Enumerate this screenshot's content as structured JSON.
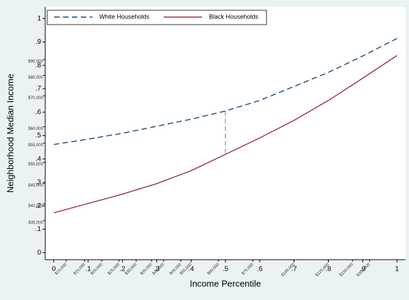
{
  "chart_data": {
    "type": "line",
    "x_label": "Income Percentile",
    "y_label": "Neighborhood Median Income",
    "x": [
      0,
      0.1,
      0.2,
      0.3,
      0.4,
      0.5,
      0.6,
      0.7,
      0.8,
      0.9,
      1
    ],
    "series": [
      {
        "name": "White Households",
        "color": "#1a476f",
        "dashed": true,
        "values": [
          0.462,
          0.485,
          0.51,
          0.54,
          0.57,
          0.605,
          0.65,
          0.71,
          0.77,
          0.84,
          0.915
        ]
      },
      {
        "name": "Black Households",
        "color": "#90353b",
        "dashed": false,
        "values": [
          0.17,
          0.21,
          0.25,
          0.295,
          0.35,
          0.42,
          0.49,
          0.565,
          0.65,
          0.745,
          0.842
        ]
      }
    ],
    "gap_at": 0.5,
    "xlim": [
      -0.025,
      1.025
    ],
    "ylim": [
      -0.03,
      1.05
    ],
    "xticks": [
      0,
      {
        "value": 0.1,
        "label": ".1"
      },
      {
        "value": 0.2,
        "label": ".2"
      },
      {
        "value": 0.3,
        "label": ".3"
      },
      {
        "value": 0.4,
        "label": ".4"
      },
      {
        "value": 0.5,
        "label": ".5"
      },
      {
        "value": 0.6,
        "label": ".6"
      },
      {
        "value": 0.7,
        "label": ".7"
      },
      {
        "value": 0.8,
        "label": ".8"
      },
      {
        "value": 0.9,
        "label": ".9"
      },
      1
    ],
    "yticks": [
      0,
      {
        "value": 0.1,
        "label": ".1"
      },
      {
        "value": 0.2,
        "label": ".2"
      },
      {
        "value": 0.3,
        "label": ".3"
      },
      {
        "value": 0.4,
        "label": ".4"
      },
      {
        "value": 0.5,
        "label": ".5"
      },
      {
        "value": 0.6,
        "label": ".6"
      },
      {
        "value": 0.7,
        "label": ".7"
      },
      {
        "value": 0.8,
        "label": ".8"
      },
      {
        "value": 0.9,
        "label": ".9"
      },
      1
    ],
    "dollar_xticks": [
      {
        "value": 0.036,
        "label": "$10,000"
      },
      {
        "value": 0.09,
        "label": "$15,000"
      },
      {
        "value": 0.14,
        "label": "$20,000"
      },
      {
        "value": 0.19,
        "label": "$25,000"
      },
      {
        "value": 0.24,
        "label": "$30,000"
      },
      {
        "value": 0.285,
        "label": "$35,000"
      },
      {
        "value": 0.32,
        "label": "$40,000"
      },
      {
        "value": 0.37,
        "label": "$45,000"
      },
      {
        "value": 0.4,
        "label": "$50,000"
      },
      {
        "value": 0.48,
        "label": "$60,000"
      },
      {
        "value": 0.58,
        "label": "$75,000"
      },
      {
        "value": 0.7,
        "label": "$100,000"
      },
      {
        "value": 0.8,
        "label": "$125,000"
      },
      {
        "value": 0.87,
        "label": "$150,000"
      },
      {
        "value": 0.92,
        "label": "$200,000"
      }
    ],
    "dollar_yticks": [
      {
        "value": 0.137,
        "label": "$35,000"
      },
      {
        "value": 0.208,
        "label": "$40,000"
      },
      {
        "value": 0.295,
        "label": "$45,000"
      },
      {
        "value": 0.386,
        "label": "$50,000"
      },
      {
        "value": 0.468,
        "label": "$55,000"
      },
      {
        "value": 0.538,
        "label": "$60,000"
      },
      {
        "value": 0.67,
        "label": "$70,000"
      },
      {
        "value": 0.757,
        "label": "$80,000"
      },
      {
        "value": 0.825,
        "label": "$90,000"
      }
    ],
    "legend": "top-left"
  }
}
